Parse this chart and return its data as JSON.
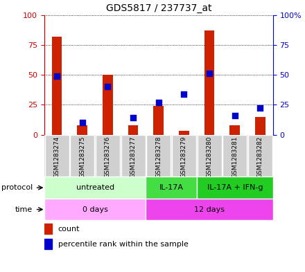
{
  "title": "GDS5817 / 237737_at",
  "samples": [
    "GSM1283274",
    "GSM1283275",
    "GSM1283276",
    "GSM1283277",
    "GSM1283278",
    "GSM1283279",
    "GSM1283280",
    "GSM1283281",
    "GSM1283282"
  ],
  "count_values": [
    82,
    8,
    50,
    8,
    24,
    3,
    87,
    8,
    15
  ],
  "percentile_values": [
    49,
    10,
    40,
    14,
    27,
    34,
    51,
    16,
    22
  ],
  "bar_color": "#cc2200",
  "dot_color": "#0000cc",
  "protocol_groups": [
    {
      "label": "untreated",
      "start": 0,
      "end": 4,
      "color": "#ccffcc"
    },
    {
      "label": "IL-17A",
      "start": 4,
      "end": 6,
      "color": "#44dd44"
    },
    {
      "label": "IL-17A + IFN-g",
      "start": 6,
      "end": 9,
      "color": "#22cc22"
    }
  ],
  "time_groups": [
    {
      "label": "0 days",
      "start": 0,
      "end": 4,
      "color": "#ffaaff"
    },
    {
      "label": "12 days",
      "start": 4,
      "end": 9,
      "color": "#ee44ee"
    }
  ],
  "ylim": [
    0,
    100
  ],
  "yticks": [
    0,
    25,
    50,
    75,
    100
  ],
  "legend_count_label": "count",
  "legend_pct_label": "percentile rank within the sample",
  "bar_width": 0.4,
  "dot_size": 35,
  "left_tick_color": "#cc0000",
  "right_tick_color": "#0000cc"
}
